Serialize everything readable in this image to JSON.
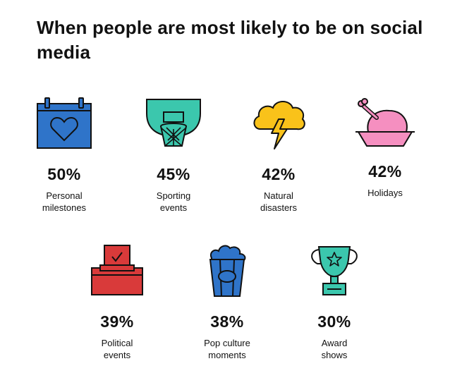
{
  "title": "When people are most likely to be on social media",
  "colors": {
    "blue": "#2f74c9",
    "teal": "#3bc7ad",
    "yellow": "#f9c21a",
    "pink": "#f58fc0",
    "red": "#d93a3a",
    "outline": "#111111"
  },
  "items": [
    {
      "icon": "calendar-heart-icon",
      "percent": "50%",
      "label_line1": "Personal",
      "label_line2": "milestones"
    },
    {
      "icon": "basketball-hoop-icon",
      "percent": "45%",
      "label_line1": "Sporting",
      "label_line2": "events"
    },
    {
      "icon": "storm-cloud-icon",
      "percent": "42%",
      "label_line1": "Natural",
      "label_line2": "disasters"
    },
    {
      "icon": "roast-turkey-icon",
      "percent": "42%",
      "label_line1": "Holidays",
      "label_line2": ""
    },
    {
      "icon": "ballot-box-icon",
      "percent": "39%",
      "label_line1": "Political",
      "label_line2": "events"
    },
    {
      "icon": "popcorn-icon",
      "percent": "38%",
      "label_line1": "Pop culture",
      "label_line2": "moments"
    },
    {
      "icon": "trophy-icon",
      "percent": "30%",
      "label_line1": "Award",
      "label_line2": "shows"
    }
  ]
}
